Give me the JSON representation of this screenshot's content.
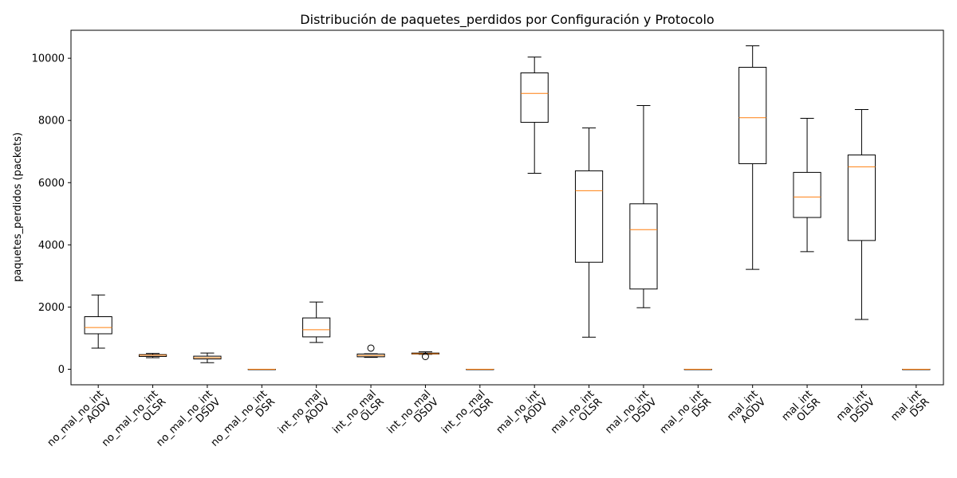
{
  "chart_data": {
    "type": "box",
    "title": "Distribución de paquetes_perdidos por Configuración y Protocolo",
    "xlabel": "",
    "ylabel": "paquetes_perdidos (packets)",
    "ylim": [
      -500,
      10900
    ],
    "yticks": [
      0,
      2000,
      4000,
      6000,
      8000,
      10000
    ],
    "grid": false,
    "colors": {
      "box": "#000000",
      "median": "#ff7f0e",
      "background": "#ffffff"
    },
    "categories": [
      [
        "no_mal_no_int",
        "AODV"
      ],
      [
        "no_mal_no_int",
        "OLSR"
      ],
      [
        "no_mal_no_int",
        "DSDV"
      ],
      [
        "no_mal_no_int",
        "DSR"
      ],
      [
        "int_no_mal",
        "AODV"
      ],
      [
        "int_no_mal",
        "OLSR"
      ],
      [
        "int_no_mal",
        "DSDV"
      ],
      [
        "int_no_mal",
        "DSR"
      ],
      [
        "mal_no_int",
        "AODV"
      ],
      [
        "mal_no_int",
        "OLSR"
      ],
      [
        "mal_no_int",
        "DSDV"
      ],
      [
        "mal_no_int",
        "DSR"
      ],
      [
        "mal_int",
        "AODV"
      ],
      [
        "mal_int",
        "OLSR"
      ],
      [
        "mal_int",
        "DSDV"
      ],
      [
        "mal_int",
        "DSR"
      ]
    ],
    "boxes": [
      {
        "whislo": 680,
        "q1": 1140,
        "med": 1340,
        "q3": 1690,
        "whishi": 2390,
        "fliers": []
      },
      {
        "whislo": 370,
        "q1": 410,
        "med": 450,
        "q3": 470,
        "whishi": 510,
        "fliers": []
      },
      {
        "whislo": 210,
        "q1": 330,
        "med": 370,
        "q3": 420,
        "whishi": 520,
        "fliers": []
      },
      {
        "whislo": 0,
        "q1": 0,
        "med": 0,
        "q3": 0,
        "whishi": 0,
        "fliers": []
      },
      {
        "whislo": 860,
        "q1": 1040,
        "med": 1270,
        "q3": 1650,
        "whishi": 2160,
        "fliers": []
      },
      {
        "whislo": 380,
        "q1": 400,
        "med": 440,
        "q3": 490,
        "whishi": 500,
        "fliers": [
          680
        ]
      },
      {
        "whislo": 480,
        "q1": 490,
        "med": 500,
        "q3": 520,
        "whishi": 560,
        "fliers": [
          410
        ]
      },
      {
        "whislo": 0,
        "q1": 0,
        "med": 0,
        "q3": 0,
        "whishi": 0,
        "fliers": []
      },
      {
        "whislo": 6300,
        "q1": 7940,
        "med": 8870,
        "q3": 9530,
        "whishi": 10040,
        "fliers": []
      },
      {
        "whislo": 1030,
        "q1": 3440,
        "med": 5740,
        "q3": 6380,
        "whishi": 7760,
        "fliers": []
      },
      {
        "whislo": 1980,
        "q1": 2580,
        "med": 4490,
        "q3": 5320,
        "whishi": 8480,
        "fliers": []
      },
      {
        "whislo": 0,
        "q1": 0,
        "med": 0,
        "q3": 0,
        "whishi": 0,
        "fliers": []
      },
      {
        "whislo": 3210,
        "q1": 6610,
        "med": 8090,
        "q3": 9710,
        "whishi": 10400,
        "fliers": []
      },
      {
        "whislo": 3780,
        "q1": 4880,
        "med": 5540,
        "q3": 6330,
        "whishi": 8070,
        "fliers": []
      },
      {
        "whislo": 1600,
        "q1": 4140,
        "med": 6510,
        "q3": 6890,
        "whishi": 8350,
        "fliers": []
      },
      {
        "whislo": 0,
        "q1": 0,
        "med": 0,
        "q3": 0,
        "whishi": 0,
        "fliers": []
      }
    ]
  }
}
